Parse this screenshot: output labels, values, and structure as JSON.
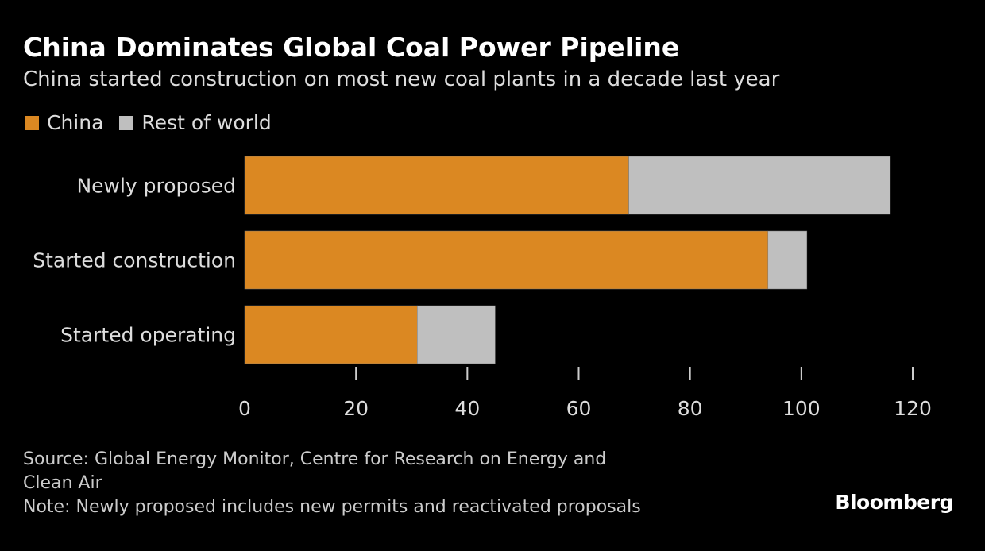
{
  "title": "China Dominates Global Coal Power Pipeline",
  "subtitle": "China started construction on most new coal plants in a decade last year",
  "colors": {
    "China": "#db8822",
    "Rest of world": "#bfbfbf"
  },
  "chart_data": {
    "type": "bar",
    "orientation": "horizontal",
    "stacked": true,
    "categories": [
      "Newly proposed",
      "Started construction",
      "Started operating"
    ],
    "series": [
      {
        "name": "China",
        "values": [
          69,
          94,
          31
        ]
      },
      {
        "name": "Rest of world",
        "values": [
          47,
          7,
          14
        ]
      }
    ],
    "xlim": [
      0,
      120
    ],
    "xticks": [
      0,
      20,
      40,
      60,
      80,
      100,
      120
    ],
    "legend": "top-left",
    "grid": false
  },
  "footer": {
    "source_line1": "Source: Global Energy Monitor, Centre for Research on Energy and",
    "source_line2": "Clean Air",
    "note": "Note: Newly proposed includes new permits and reactivated proposals",
    "logo": "Bloomberg"
  }
}
